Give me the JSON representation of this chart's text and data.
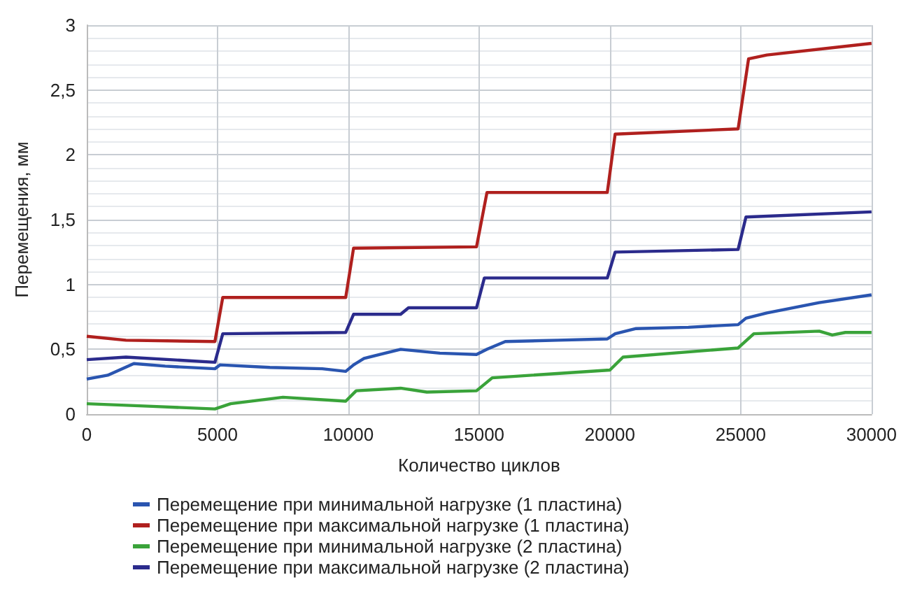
{
  "chart_data": {
    "type": "line",
    "xlabel": "Количество циклов",
    "ylabel": "Перемещения, мм",
    "xlim": [
      0,
      30000
    ],
    "xticks": [
      0,
      5000,
      10000,
      15000,
      20000,
      25000,
      30000
    ],
    "ylim": [
      0,
      3
    ],
    "yticks": [
      0,
      {
        "value": 0.5,
        "label": "0,5"
      },
      1,
      {
        "value": 1.5,
        "label": "1,5"
      },
      2,
      {
        "value": 2.5,
        "label": "2,5"
      },
      3
    ],
    "grid": true,
    "legend": "bottom",
    "marker": "none",
    "line_style": "solid",
    "series": [
      {
        "name": "Перемещение при минимальной нагрузке (1 пластина)",
        "color": "#2a55b0",
        "x": [
          0,
          800,
          1800,
          3000,
          4900,
          5100,
          7000,
          9000,
          9900,
          10200,
          10600,
          12000,
          13500,
          14900,
          15300,
          16000,
          18000,
          19900,
          20200,
          21000,
          23000,
          24900,
          25200,
          26000,
          28000,
          30000
        ],
        "values": [
          0.27,
          0.3,
          0.39,
          0.37,
          0.35,
          0.38,
          0.36,
          0.35,
          0.33,
          0.38,
          0.43,
          0.5,
          0.47,
          0.46,
          0.5,
          0.56,
          0.57,
          0.58,
          0.62,
          0.66,
          0.67,
          0.69,
          0.74,
          0.78,
          0.86,
          0.92
        ]
      },
      {
        "name": "Перемещение при максимальной нагрузке (1 пластина)",
        "color": "#b0201e",
        "x": [
          0,
          1500,
          4900,
          5200,
          9900,
          10200,
          14900,
          15300,
          19900,
          20200,
          24900,
          25300,
          26000,
          30000
        ],
        "values": [
          0.6,
          0.57,
          0.56,
          0.9,
          0.9,
          1.28,
          1.29,
          1.71,
          1.71,
          2.16,
          2.2,
          2.74,
          2.77,
          2.86
        ]
      },
      {
        "name": "Перемещение при минимальной нагрузке (2 пластина)",
        "color": "#3aa33a",
        "x": [
          0,
          2500,
          4900,
          5500,
          7500,
          9900,
          10300,
          12000,
          13000,
          14900,
          15500,
          20000,
          20500,
          24900,
          25500,
          28000,
          28500,
          29000,
          30000
        ],
        "values": [
          0.08,
          0.06,
          0.04,
          0.08,
          0.13,
          0.1,
          0.18,
          0.2,
          0.17,
          0.18,
          0.28,
          0.34,
          0.44,
          0.51,
          0.62,
          0.64,
          0.61,
          0.63,
          0.63
        ]
      },
      {
        "name": "Перемещение при максимальной нагрузке (2 пластина)",
        "color": "#2b2b8c",
        "x": [
          0,
          1500,
          4900,
          5200,
          9900,
          10200,
          12000,
          12300,
          14900,
          15200,
          19900,
          20200,
          24900,
          25200,
          30000
        ],
        "values": [
          0.42,
          0.44,
          0.4,
          0.62,
          0.63,
          0.77,
          0.77,
          0.82,
          0.82,
          1.05,
          1.05,
          1.25,
          1.27,
          1.52,
          1.56
        ]
      }
    ]
  }
}
